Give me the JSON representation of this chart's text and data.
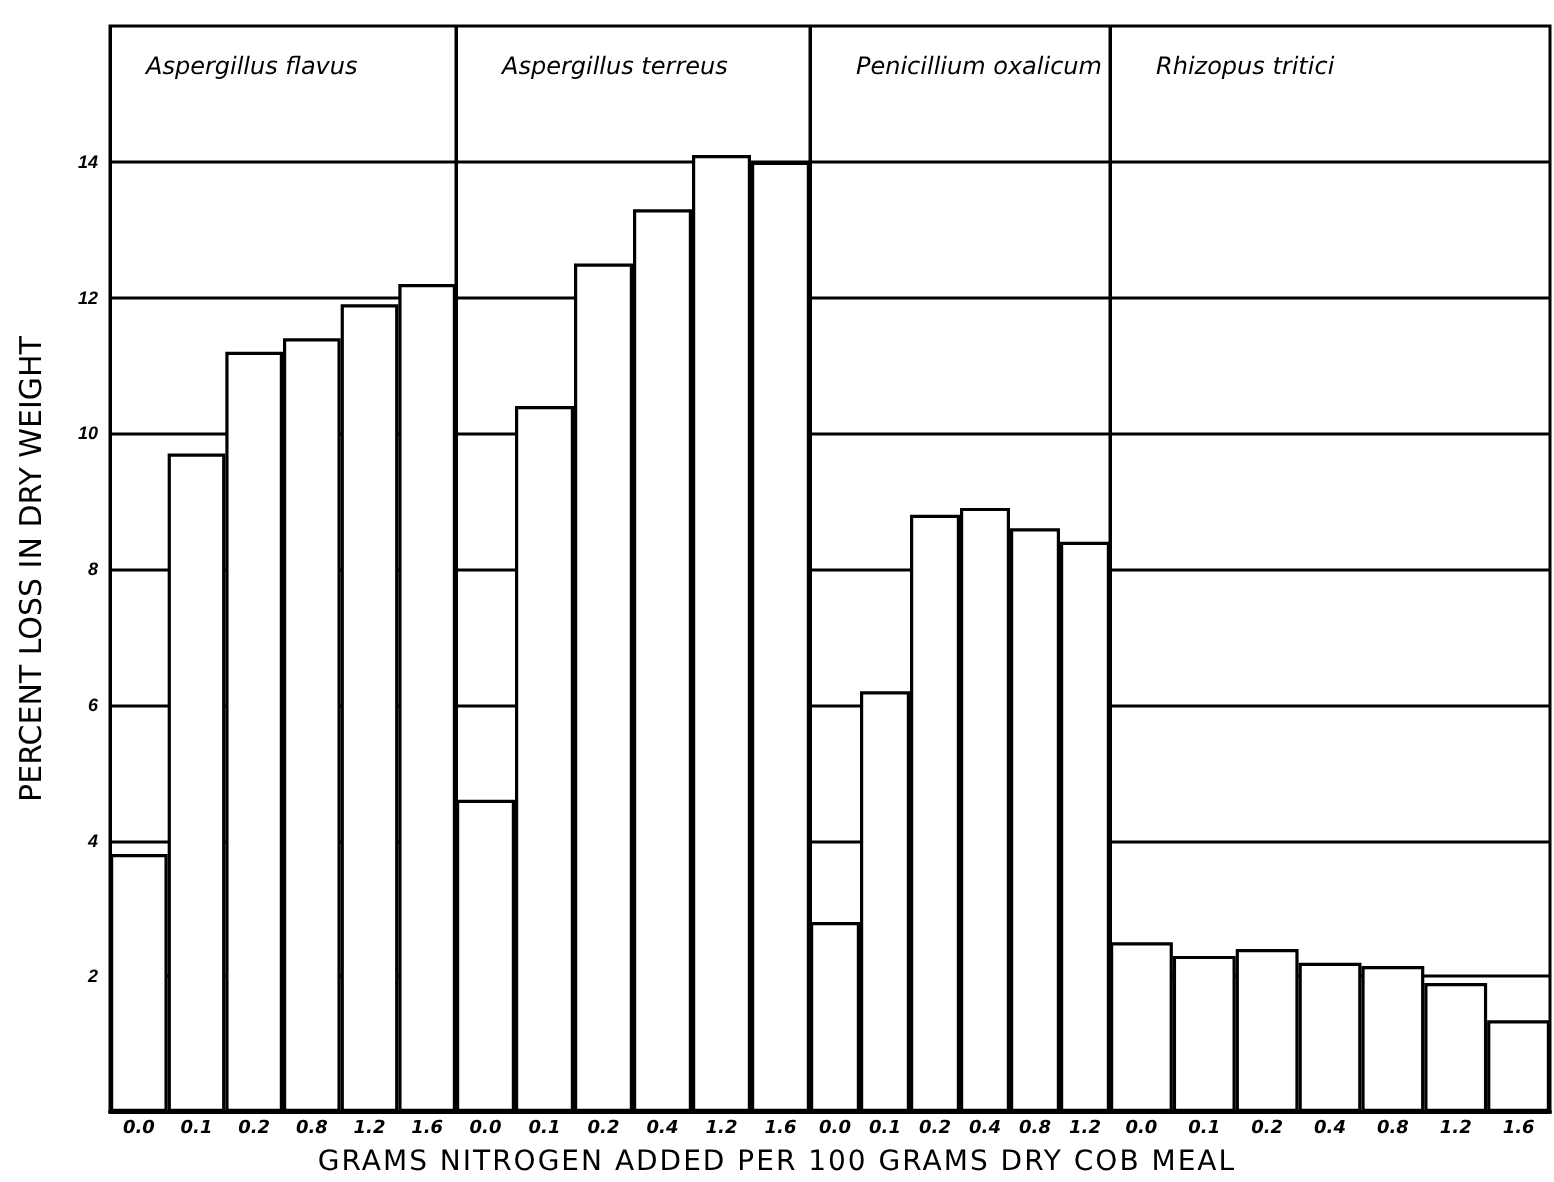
{
  "chart_data": [
    {
      "type": "bar",
      "title": "Aspergillus flavus",
      "ylabel": "PERCENT LOSS IN DRY WEIGHT",
      "xlabel": "GRAMS NITROGEN ADDED PER 100 GRAMS DRY COB MEAL",
      "categories": [
        "0.0",
        "0.1",
        "0.2",
        "0.8",
        "1.2",
        "1.6"
      ],
      "values": [
        3.8,
        9.7,
        11.2,
        11.4,
        11.9,
        12.2
      ],
      "color": "#ffffff",
      "ylim": [
        0,
        16
      ],
      "yticks": [
        2,
        4,
        6,
        8,
        10,
        12,
        14
      ],
      "grid": "y"
    },
    {
      "type": "bar",
      "title": "Aspergillus terreus",
      "categories": [
        "0.0",
        "0.1",
        "0.2",
        "0.4",
        "1.2",
        "1.6"
      ],
      "values": [
        4.6,
        10.4,
        12.5,
        13.3,
        14.1,
        14.0
      ],
      "color": "#ffffff",
      "ylim": [
        0,
        16
      ],
      "yticks": [
        2,
        4,
        6,
        8,
        10,
        12,
        14
      ],
      "grid": "y",
      "tick_labels": "x"
    },
    {
      "type": "bar",
      "title": "Penicillium oxalicum",
      "categories": [
        "0.0",
        "0.1",
        "0.2",
        "0.4",
        "0.8",
        "1.2"
      ],
      "values": [
        2.8,
        6.2,
        8.8,
        8.9,
        8.6,
        8.4
      ],
      "color": "#ffffff",
      "ylim": [
        0,
        16
      ],
      "yticks": [
        2,
        4,
        6,
        8,
        10,
        12,
        14
      ],
      "grid": "y",
      "tick_labels": "x"
    },
    {
      "type": "bar",
      "title": "Rhizopus tritici",
      "categories": [
        "0.0",
        "0.1",
        "0.2",
        "0.4",
        "0.8",
        "1.2",
        "1.6"
      ],
      "values": [
        2.5,
        2.3,
        2.4,
        2.2,
        2.15,
        1.9,
        1.35
      ],
      "color": "#ffffff",
      "ylim": [
        0,
        16
      ],
      "yticks": [
        2,
        4,
        6,
        8,
        10,
        12,
        14
      ],
      "grid": "y",
      "tick_labels": "x"
    }
  ]
}
